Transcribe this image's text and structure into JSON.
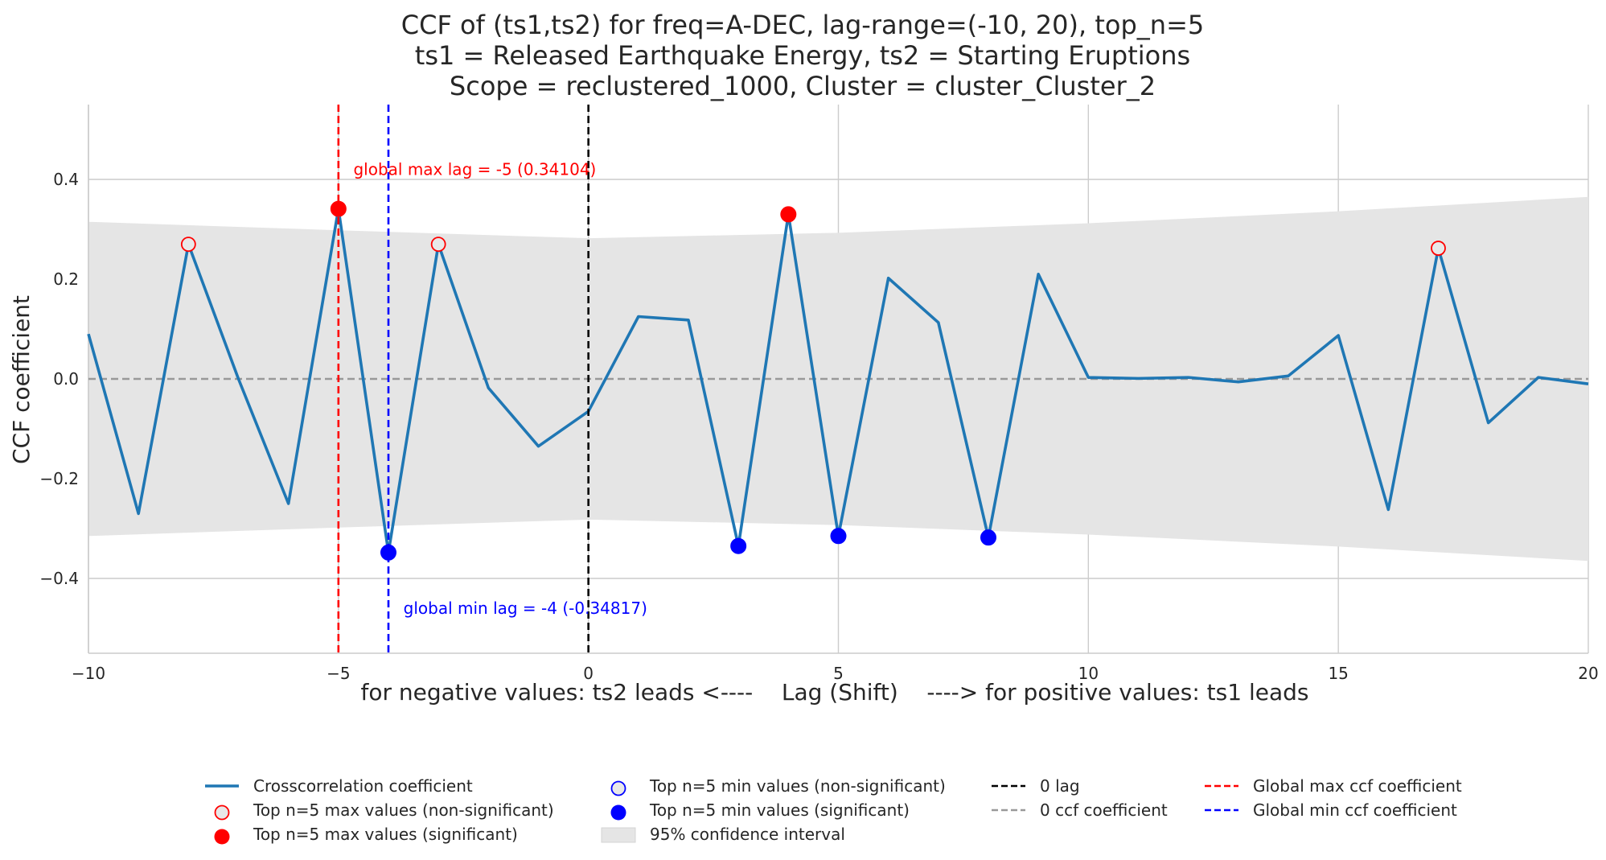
{
  "chart_data": {
    "type": "line",
    "title_lines": [
      "CCF of (ts1,ts2) for freq=A-DEC, lag-range=(-10, 20), top_n=5",
      "ts1 = Released Earthquake Energy, ts2 = Starting Eruptions",
      "Scope = reclustered_1000, Cluster = cluster_Cluster_2"
    ],
    "xlabel": "for negative values: ts2 leads <----    Lag (Shift)    ----> for positive values: ts1 leads",
    "ylabel": "CCF coefficient",
    "xlim": [
      -10,
      20
    ],
    "ylim": [
      -0.55,
      0.55
    ],
    "x_ticks": [
      -10,
      -5,
      0,
      5,
      10,
      15,
      20
    ],
    "x_tick_labels": [
      "−10",
      "−5",
      "0",
      "5",
      "10",
      "15",
      "20"
    ],
    "y_ticks": [
      -0.4,
      -0.2,
      0.0,
      0.2,
      0.4
    ],
    "y_tick_labels": [
      "−0.4",
      "−0.2",
      "0.0",
      "0.2",
      "0.4"
    ],
    "grid": true,
    "series": [
      {
        "name": "Crosscorrelation coefficient",
        "color": "#1f77b4",
        "x": [
          -10,
          -9,
          -8,
          -7,
          -6,
          -5,
          -4,
          -3,
          -2,
          -1,
          0,
          1,
          2,
          3,
          4,
          5,
          6,
          7,
          8,
          9,
          10,
          11,
          12,
          13,
          14,
          15,
          16,
          17,
          18,
          19,
          20
        ],
        "values": [
          0.09,
          -0.27,
          0.27,
          0.0,
          -0.25,
          0.341,
          -0.348,
          0.27,
          -0.018,
          -0.135,
          -0.065,
          0.125,
          0.118,
          -0.335,
          0.33,
          -0.315,
          0.202,
          0.113,
          -0.318,
          0.21,
          0.003,
          0.001,
          0.003,
          -0.006,
          0.006,
          0.087,
          -0.262,
          0.262,
          -0.088,
          0.003,
          -0.01
        ]
      }
    ],
    "confidence_interval": {
      "name": "95% confidence interval",
      "color": "#e5e5e5",
      "x": [
        -10,
        -5,
        0,
        5,
        10,
        15,
        20
      ],
      "upper": [
        0.315,
        0.298,
        0.282,
        0.293,
        0.312,
        0.336,
        0.365
      ],
      "lower": [
        -0.315,
        -0.298,
        -0.282,
        -0.293,
        -0.312,
        -0.336,
        -0.365
      ]
    },
    "top_max_nonsignificant": {
      "name": "Top n=5 max values (non-significant)",
      "x": [
        -8,
        -3,
        17
      ],
      "y": [
        0.27,
        0.27,
        0.262
      ]
    },
    "top_max_significant": {
      "name": "Top n=5 max values (significant)",
      "x": [
        -5,
        4
      ],
      "y": [
        0.341,
        0.33
      ]
    },
    "top_min_nonsignificant": {
      "name": "Top n=5 min values (non-significant)",
      "x": [],
      "y": []
    },
    "top_min_significant": {
      "name": "Top n=5 min values (significant)",
      "x": [
        -4,
        3,
        5,
        8
      ],
      "y": [
        -0.348,
        -0.335,
        -0.315,
        -0.318
      ]
    },
    "vlines": [
      {
        "name": "Global max ccf coefficient",
        "x": -5,
        "color": "#ff0000"
      },
      {
        "name": "Global min ccf coefficient",
        "x": -4,
        "color": "#0000ff"
      },
      {
        "name": "0 lag",
        "x": 0,
        "color": "#000000"
      }
    ],
    "hline": {
      "name": "0 ccf coefficient",
      "y": 0.0,
      "color": "#999999"
    },
    "annotations": [
      {
        "text": "global max lag = -5 (0.34104)",
        "x": -4.7,
        "y": 0.42,
        "color": "#ff0000"
      },
      {
        "text": "global min lag = -4 (-0.34817)",
        "x": -3.7,
        "y": -0.46,
        "color": "#0000ff"
      }
    ],
    "legend_position": "bottom-center",
    "legend": [
      {
        "label": "Crosscorrelation coefficient",
        "kind": "line",
        "color": "#1f77b4"
      },
      {
        "label": "Top n=5 max values (non-significant)",
        "kind": "marker-open",
        "color": "#ff0000"
      },
      {
        "label": "Top n=5 max values (significant)",
        "kind": "marker-filled",
        "color": "#ff0000"
      },
      {
        "label": "Top n=5 min values (non-significant)",
        "kind": "marker-open",
        "color": "#0000ff"
      },
      {
        "label": "Top n=5 min values (significant)",
        "kind": "marker-filled",
        "color": "#0000ff"
      },
      {
        "label": "95% confidence interval",
        "kind": "patch",
        "color": "#e5e5e5"
      },
      {
        "label": "0 lag",
        "kind": "dash",
        "color": "#000000"
      },
      {
        "label": "0 ccf coefficient",
        "kind": "dash",
        "color": "#999999"
      },
      {
        "label": "Global max ccf coefficient",
        "kind": "dash",
        "color": "#ff0000"
      },
      {
        "label": "Global min ccf coefficient",
        "kind": "dash",
        "color": "#0000ff"
      }
    ]
  }
}
